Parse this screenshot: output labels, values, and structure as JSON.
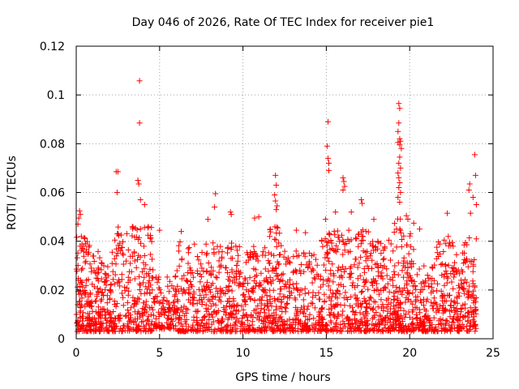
{
  "chart_data": {
    "type": "scatter",
    "title": "Day 046 of 2026, Rate Of TEC Index for receiver pie1",
    "xlabel": "GPS time / hours",
    "ylabel": "ROTI / TECUs",
    "xlim": [
      0,
      25
    ],
    "ylim": [
      0,
      0.12
    ],
    "xticks": [
      0,
      5,
      10,
      15,
      20,
      25
    ],
    "xtick_labels": [
      "0",
      "5",
      "10",
      "15",
      "20",
      "25"
    ],
    "yticks": [
      0,
      0.02,
      0.04,
      0.06,
      0.08,
      0.1,
      0.12
    ],
    "ytick_labels": [
      "0",
      "0.02",
      "0.04",
      "0.06",
      "0.08",
      "0.1",
      "0.12"
    ],
    "grid": true,
    "marker": "+",
    "series_color": "#ff0000",
    "outliers": [
      {
        "x": 3.8,
        "y": 0.1058
      },
      {
        "x": 3.8,
        "y": 0.0885
      },
      {
        "x": 2.5,
        "y": 0.0685
      },
      {
        "x": 2.4,
        "y": 0.0685
      },
      {
        "x": 3.7,
        "y": 0.065
      },
      {
        "x": 3.75,
        "y": 0.0635
      },
      {
        "x": 2.45,
        "y": 0.06
      },
      {
        "x": 3.85,
        "y": 0.057
      },
      {
        "x": 4.1,
        "y": 0.055
      },
      {
        "x": 15.1,
        "y": 0.089
      },
      {
        "x": 15.05,
        "y": 0.079
      },
      {
        "x": 15.1,
        "y": 0.074
      },
      {
        "x": 15.15,
        "y": 0.072
      },
      {
        "x": 15.15,
        "y": 0.069
      },
      {
        "x": 19.35,
        "y": 0.0965
      },
      {
        "x": 19.4,
        "y": 0.0945
      },
      {
        "x": 19.35,
        "y": 0.0885
      },
      {
        "x": 19.3,
        "y": 0.085
      },
      {
        "x": 19.4,
        "y": 0.082
      },
      {
        "x": 19.45,
        "y": 0.081
      },
      {
        "x": 19.3,
        "y": 0.0805
      },
      {
        "x": 19.4,
        "y": 0.0795
      },
      {
        "x": 19.5,
        "y": 0.078
      },
      {
        "x": 19.4,
        "y": 0.0745
      },
      {
        "x": 19.35,
        "y": 0.072
      },
      {
        "x": 19.45,
        "y": 0.07
      },
      {
        "x": 19.3,
        "y": 0.068
      },
      {
        "x": 19.35,
        "y": 0.066
      },
      {
        "x": 19.4,
        "y": 0.064
      },
      {
        "x": 19.35,
        "y": 0.062
      },
      {
        "x": 19.45,
        "y": 0.06
      },
      {
        "x": 19.3,
        "y": 0.058
      },
      {
        "x": 19.4,
        "y": 0.056
      },
      {
        "x": 11.95,
        "y": 0.067
      },
      {
        "x": 12.0,
        "y": 0.063
      },
      {
        "x": 11.9,
        "y": 0.059
      },
      {
        "x": 11.95,
        "y": 0.0565
      },
      {
        "x": 12.05,
        "y": 0.0545
      },
      {
        "x": 12.0,
        "y": 0.053
      },
      {
        "x": 16.0,
        "y": 0.066
      },
      {
        "x": 16.05,
        "y": 0.0645
      },
      {
        "x": 16.1,
        "y": 0.0625
      },
      {
        "x": 16.0,
        "y": 0.061
      },
      {
        "x": 17.1,
        "y": 0.057
      },
      {
        "x": 17.15,
        "y": 0.0555
      },
      {
        "x": 23.9,
        "y": 0.0755
      },
      {
        "x": 23.95,
        "y": 0.067
      },
      {
        "x": 23.6,
        "y": 0.0635
      },
      {
        "x": 23.55,
        "y": 0.061
      },
      {
        "x": 23.8,
        "y": 0.058
      },
      {
        "x": 24.0,
        "y": 0.055
      },
      {
        "x": 8.35,
        "y": 0.0595
      },
      {
        "x": 8.3,
        "y": 0.054
      },
      {
        "x": 7.9,
        "y": 0.049
      },
      {
        "x": 9.25,
        "y": 0.052
      },
      {
        "x": 9.3,
        "y": 0.051
      },
      {
        "x": 10.7,
        "y": 0.0495
      },
      {
        "x": 10.95,
        "y": 0.05
      },
      {
        "x": 0.2,
        "y": 0.0525
      },
      {
        "x": 0.25,
        "y": 0.051
      },
      {
        "x": 0.15,
        "y": 0.0495
      },
      {
        "x": 0.1,
        "y": 0.047
      },
      {
        "x": 22.25,
        "y": 0.0515
      },
      {
        "x": 23.65,
        "y": 0.0515
      },
      {
        "x": 16.5,
        "y": 0.052
      },
      {
        "x": 17.85,
        "y": 0.049
      },
      {
        "x": 15.55,
        "y": 0.052
      },
      {
        "x": 14.95,
        "y": 0.049
      },
      {
        "x": 19.8,
        "y": 0.0505
      },
      {
        "x": 20.6,
        "y": 0.045
      },
      {
        "x": 13.75,
        "y": 0.0435
      },
      {
        "x": 13.2,
        "y": 0.0445
      },
      {
        "x": 6.3,
        "y": 0.044
      },
      {
        "x": 5.0,
        "y": 0.0445
      }
    ],
    "bulk_segments": [
      {
        "x0": 0.0,
        "x1": 0.8,
        "ymin": 0.003,
        "ymax": 0.042,
        "density": 110
      },
      {
        "x0": 0.8,
        "x1": 2.3,
        "ymin": 0.003,
        "ymax": 0.036,
        "density": 170
      },
      {
        "x0": 2.3,
        "x1": 4.6,
        "ymin": 0.003,
        "ymax": 0.046,
        "density": 230
      },
      {
        "x0": 4.6,
        "x1": 6.0,
        "ymin": 0.004,
        "ymax": 0.026,
        "density": 110
      },
      {
        "x0": 6.0,
        "x1": 9.5,
        "ymin": 0.003,
        "ymax": 0.04,
        "density": 330
      },
      {
        "x0": 9.5,
        "x1": 11.6,
        "ymin": 0.003,
        "ymax": 0.038,
        "density": 210
      },
      {
        "x0": 11.6,
        "x1": 12.4,
        "ymin": 0.003,
        "ymax": 0.046,
        "density": 100
      },
      {
        "x0": 12.4,
        "x1": 14.7,
        "ymin": 0.003,
        "ymax": 0.036,
        "density": 200
      },
      {
        "x0": 14.7,
        "x1": 17.6,
        "ymin": 0.003,
        "ymax": 0.045,
        "density": 300
      },
      {
        "x0": 17.6,
        "x1": 19.0,
        "ymin": 0.003,
        "ymax": 0.041,
        "density": 140
      },
      {
        "x0": 19.0,
        "x1": 20.3,
        "ymin": 0.003,
        "ymax": 0.05,
        "density": 170
      },
      {
        "x0": 20.3,
        "x1": 21.6,
        "ymin": 0.003,
        "ymax": 0.031,
        "density": 120
      },
      {
        "x0": 21.6,
        "x1": 24.0,
        "ymin": 0.003,
        "ymax": 0.042,
        "density": 250
      }
    ]
  }
}
